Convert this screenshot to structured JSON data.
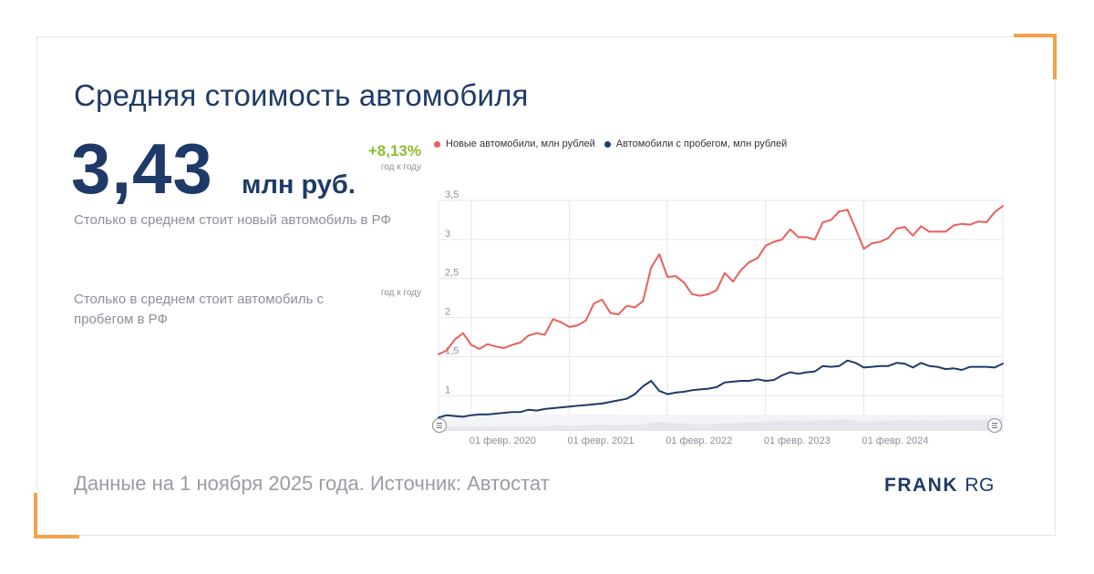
{
  "title": "Средняя стоимость автомобиля",
  "headline": {
    "value": "3,43",
    "unit": "млн руб.",
    "change": "+8,13%",
    "period": "год к году",
    "description": "Столько в среднем стоит новый автомобиль в РФ"
  },
  "second": {
    "period": "год к году",
    "description": "Столько в среднем стоит автомобиль с пробегом в РФ"
  },
  "footer": "Данные на 1 ноября 2025 года. Источник: Автостат",
  "logo": {
    "part1": "FRANK",
    "part2": "RG"
  },
  "colors": {
    "new": "#e8605b",
    "used": "#1f3a68",
    "accent": "#8cbd2d",
    "corner": "#f4a24a"
  },
  "chart_data": {
    "type": "line",
    "x_start": "2019-10",
    "xtick_labels": [
      "01 февр. 2020",
      "01 февр. 2021",
      "01 февр. 2022",
      "01 февр. 2023",
      "01 февр. 2024"
    ],
    "ytick_labels": [
      "1",
      "1,5",
      "2",
      "2,5",
      "3",
      "3,5"
    ],
    "ytick_values": [
      1,
      1.5,
      2,
      2.5,
      3,
      3.5
    ],
    "ylim": [
      0.7,
      3.5
    ],
    "grid": true,
    "legend_position": "top",
    "navigator": true,
    "series": [
      {
        "name": "Новые автомобили, млн рублей",
        "color": "#e8605b",
        "values": [
          1.53,
          1.58,
          1.72,
          1.8,
          1.65,
          1.6,
          1.66,
          1.63,
          1.61,
          1.65,
          1.68,
          1.77,
          1.8,
          1.78,
          1.98,
          1.94,
          1.88,
          1.9,
          1.96,
          2.18,
          2.23,
          2.06,
          2.04,
          2.15,
          2.13,
          2.21,
          2.64,
          2.81,
          2.52,
          2.53,
          2.45,
          2.3,
          2.28,
          2.3,
          2.35,
          2.57,
          2.46,
          2.61,
          2.71,
          2.76,
          2.92,
          2.97,
          3.0,
          3.13,
          3.03,
          3.03,
          3.0,
          3.22,
          3.25,
          3.36,
          3.38,
          3.14,
          2.88,
          2.95,
          2.97,
          3.02,
          3.14,
          3.16,
          3.05,
          3.17,
          3.1,
          3.1,
          3.1,
          3.18,
          3.2,
          3.19,
          3.23,
          3.22,
          3.35,
          3.43
        ]
      },
      {
        "name": "Автомобили с пробегом, млн рублей",
        "color": "#1f3a68",
        "values": [
          0.72,
          0.75,
          0.74,
          0.73,
          0.75,
          0.76,
          0.76,
          0.77,
          0.78,
          0.79,
          0.79,
          0.82,
          0.81,
          0.83,
          0.84,
          0.85,
          0.86,
          0.87,
          0.88,
          0.89,
          0.9,
          0.92,
          0.94,
          0.96,
          1.02,
          1.12,
          1.19,
          1.06,
          1.02,
          1.04,
          1.05,
          1.07,
          1.08,
          1.09,
          1.11,
          1.17,
          1.18,
          1.19,
          1.19,
          1.21,
          1.19,
          1.2,
          1.26,
          1.3,
          1.28,
          1.3,
          1.31,
          1.38,
          1.37,
          1.38,
          1.45,
          1.42,
          1.36,
          1.37,
          1.38,
          1.38,
          1.42,
          1.41,
          1.36,
          1.42,
          1.38,
          1.37,
          1.34,
          1.35,
          1.33,
          1.37,
          1.37,
          1.37,
          1.36,
          1.41
        ]
      }
    ]
  }
}
